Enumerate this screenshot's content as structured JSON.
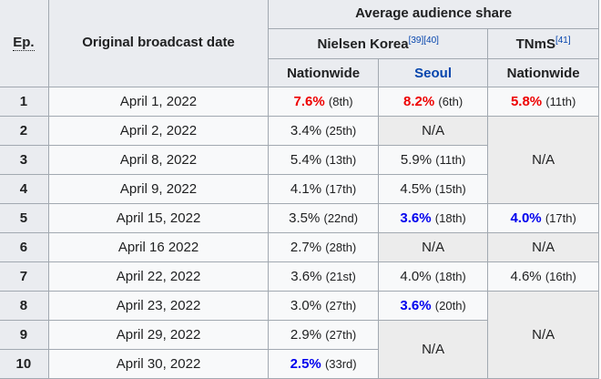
{
  "header": {
    "ep": "Ep.",
    "date": "Original broadcast date",
    "avg_share": "Average audience share",
    "nielsen": "Nielsen Korea",
    "nielsen_refs": "[39][40]",
    "tnms": "TNmS",
    "tnms_refs": "[41]",
    "nationwide": "Nationwide",
    "seoul": "Seoul"
  },
  "colors": {
    "highest": "#ee0000",
    "lowest": "#0000ee",
    "na_bg": "#ececec"
  },
  "rows": [
    {
      "ep": "1",
      "date": "April 1, 2022",
      "nn": "7.6%",
      "nn_rank": "(8th)",
      "ns": "8.2%",
      "ns_rank": "(6th)",
      "tn": "5.8%",
      "tn_rank": "(11th)"
    },
    {
      "ep": "2",
      "date": "April 2, 2022",
      "nn": "3.4%",
      "nn_rank": "(25th)",
      "ns": "N/A",
      "tn": "N/A"
    },
    {
      "ep": "3",
      "date": "April 8, 2022",
      "nn": "5.4%",
      "nn_rank": "(13th)",
      "ns": "5.9%",
      "ns_rank": "(11th)"
    },
    {
      "ep": "4",
      "date": "April 9, 2022",
      "nn": "4.1%",
      "nn_rank": "(17th)",
      "ns": "4.5%",
      "ns_rank": "(15th)"
    },
    {
      "ep": "5",
      "date": "April 15, 2022",
      "nn": "3.5%",
      "nn_rank": "(22nd)",
      "ns": "3.6%",
      "ns_rank": "(18th)",
      "tn": "4.0%",
      "tn_rank": "(17th)"
    },
    {
      "ep": "6",
      "date": "April 16 2022",
      "nn": "2.7%",
      "nn_rank": "(28th)",
      "ns": "N/A",
      "tn": "N/A"
    },
    {
      "ep": "7",
      "date": "April 22, 2022",
      "nn": "3.6%",
      "nn_rank": "(21st)",
      "ns": "4.0%",
      "ns_rank": "(18th)",
      "tn": "4.6%",
      "tn_rank": "(16th)"
    },
    {
      "ep": "8",
      "date": "April 23, 2022",
      "nn": "3.0%",
      "nn_rank": "(27th)",
      "ns": "3.6%",
      "ns_rank": "(20th)",
      "tn": "N/A"
    },
    {
      "ep": "9",
      "date": "April 29, 2022",
      "nn": "2.9%",
      "nn_rank": "(27th)",
      "ns": "N/A"
    },
    {
      "ep": "10",
      "date": "April 30, 2022",
      "nn": "2.5%",
      "nn_rank": "(33rd)"
    }
  ]
}
